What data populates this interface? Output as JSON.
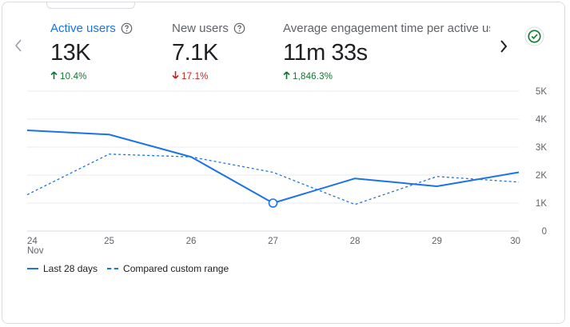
{
  "metrics": [
    {
      "label": "Active users",
      "value": "13K",
      "change": "10.4%",
      "direction": "up"
    },
    {
      "label": "New users",
      "value": "7.1K",
      "change": "17.1%",
      "direction": "down"
    },
    {
      "label": "Average engagement time per active us",
      "value": "11m 33s",
      "change": "1,846.3%",
      "direction": "up"
    }
  ],
  "icons": {
    "prev": "chevron-left-icon",
    "next": "chevron-right-icon",
    "help": "help-circle-icon",
    "status": "check-circle-icon"
  },
  "colors": {
    "accent": "#1a73e8",
    "positive": "#137333",
    "negative": "#c5221f",
    "status": "#188038"
  },
  "chart_data": {
    "type": "line",
    "title": "",
    "xlabel": "",
    "ylabel": "",
    "categories": [
      "24",
      "25",
      "26",
      "27",
      "28",
      "29",
      "30"
    ],
    "category_sublabels": [
      "Nov",
      "",
      "",
      "",
      "",
      "",
      ""
    ],
    "y_ticks": [
      "0",
      "1K",
      "2K",
      "3K",
      "4K",
      "5K"
    ],
    "ylim": [
      0,
      5000
    ],
    "grid": true,
    "highlight_index": 3,
    "series": [
      {
        "name": "Last 28 days",
        "style": "solid",
        "values": [
          3600,
          3450,
          2650,
          1000,
          1880,
          1600,
          2100
        ]
      },
      {
        "name": "Compared custom range",
        "style": "dashed",
        "values": [
          1300,
          2750,
          2650,
          2100,
          950,
          1950,
          1750
        ]
      }
    ],
    "legend_position": "bottom-left"
  }
}
